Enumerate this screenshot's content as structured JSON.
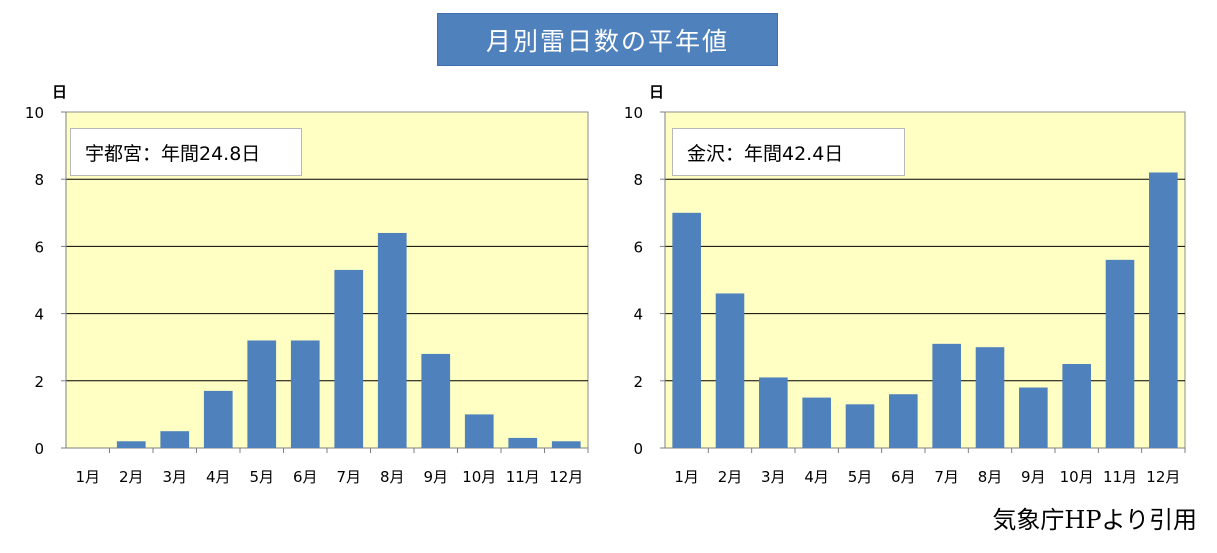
{
  "page": {
    "title": "月別雷日数の平年値",
    "source": "気象庁HPより引用",
    "title_bg": "#4f81bd"
  },
  "charts": [
    {
      "label": "宇都宮：年間24.8日",
      "unit": "日",
      "yticks": [
        "0",
        "2",
        "4",
        "6",
        "8",
        "10"
      ],
      "months": [
        "1月",
        "2月",
        "3月",
        "4月",
        "5月",
        "6月",
        "7月",
        "8月",
        "9月",
        "10月",
        "11月",
        "12月"
      ]
    },
    {
      "label": "金沢：年間42.4日",
      "unit": "日",
      "yticks": [
        "0",
        "2",
        "4",
        "6",
        "8",
        "10"
      ],
      "months": [
        "1月",
        "2月",
        "3月",
        "4月",
        "5月",
        "6月",
        "7月",
        "8月",
        "9月",
        "10月",
        "11月",
        "12月"
      ]
    }
  ],
  "chart_data": [
    {
      "type": "bar",
      "categories": [
        "1月",
        "2月",
        "3月",
        "4月",
        "5月",
        "6月",
        "7月",
        "8月",
        "9月",
        "10月",
        "11月",
        "12月"
      ],
      "values": [
        0.0,
        0.2,
        0.5,
        1.7,
        3.2,
        3.2,
        5.3,
        6.4,
        2.8,
        1.0,
        0.3,
        0.2
      ],
      "title": "月別雷日数の平年値",
      "ylabel": "日",
      "ylim": [
        0,
        10
      ],
      "grid": true,
      "annotation": "宇都宮：年間24.8日",
      "bar_color": "#4f81bd",
      "plot_bg": "#ffffc4"
    },
    {
      "type": "bar",
      "categories": [
        "1月",
        "2月",
        "3月",
        "4月",
        "5月",
        "6月",
        "7月",
        "8月",
        "9月",
        "10月",
        "11月",
        "12月"
      ],
      "values": [
        7.0,
        4.6,
        2.1,
        1.5,
        1.3,
        1.6,
        3.1,
        3.0,
        1.8,
        2.5,
        5.6,
        8.2
      ],
      "title": "月別雷日数の平年値",
      "ylabel": "日",
      "ylim": [
        0,
        10
      ],
      "grid": true,
      "annotation": "金沢：年間42.4日",
      "bar_color": "#4f81bd",
      "plot_bg": "#ffffc4"
    }
  ]
}
